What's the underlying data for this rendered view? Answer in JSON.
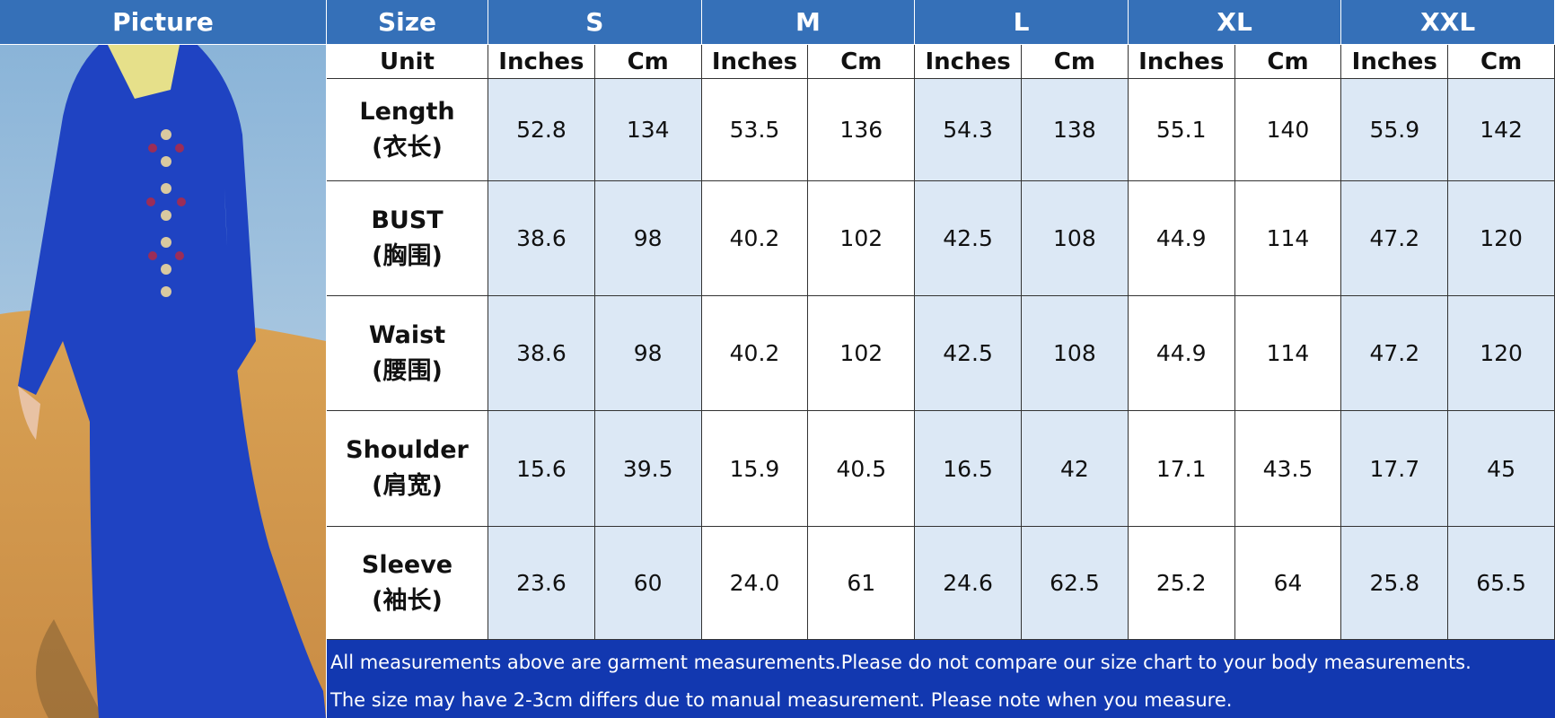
{
  "header": {
    "picture": "Picture",
    "size": "Size",
    "sizes": [
      "S",
      "M",
      "L",
      "XL",
      "XXL"
    ]
  },
  "unit_row": {
    "label": "Unit",
    "units": [
      "Inches",
      "Cm",
      "Inches",
      "Cm",
      "Inches",
      "Cm",
      "Inches",
      "Cm",
      "Inches",
      "Cm"
    ]
  },
  "rows": [
    {
      "label": "Length",
      "sub": "(衣长)",
      "values": [
        "52.8",
        "134",
        "53.5",
        "136",
        "54.3",
        "138",
        "55.1",
        "140",
        "55.9",
        "142"
      ]
    },
    {
      "label": "BUST",
      "sub": "(胸围)",
      "values": [
        "38.6",
        "98",
        "40.2",
        "102",
        "42.5",
        "108",
        "44.9",
        "114",
        "47.2",
        "120"
      ]
    },
    {
      "label": "Waist",
      "sub": "(腰围)",
      "values": [
        "38.6",
        "98",
        "40.2",
        "102",
        "42.5",
        "108",
        "44.9",
        "114",
        "47.2",
        "120"
      ]
    },
    {
      "label": "Shoulder",
      "sub": "(肩宽)",
      "values": [
        "15.6",
        "39.5",
        "15.9",
        "40.5",
        "16.5",
        "42",
        "17.1",
        "43.5",
        "17.7",
        "45"
      ]
    },
    {
      "label": "Sleeve",
      "sub": "(袖长)",
      "values": [
        "23.6",
        "60",
        "24.0",
        "61",
        "24.6",
        "62.5",
        "25.2",
        "64",
        "25.8",
        "65.5"
      ]
    }
  ],
  "notes": [
    "All measurements above are garment measurements.Please do not compare our size chart to your body measurements.",
    "The size may have 2-3cm differs due to manual measurement. Please note when you measure."
  ]
}
